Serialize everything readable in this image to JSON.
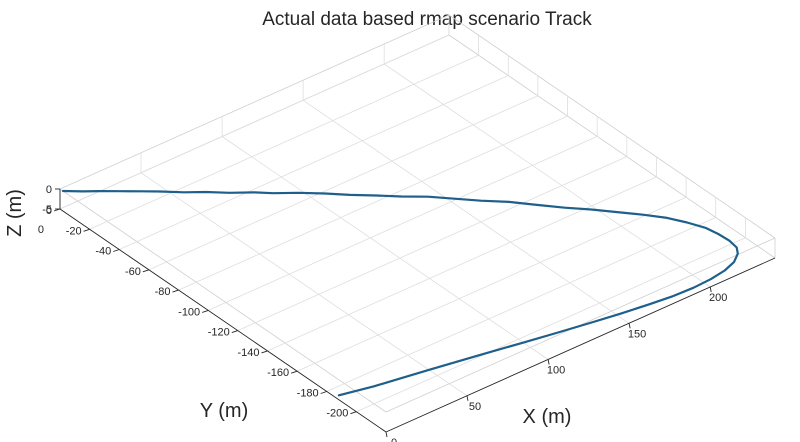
{
  "chart_data": {
    "type": "line",
    "title": "Actual data based rmap scenario Track",
    "xlabel": "X (m)",
    "ylabel": "Y (m)",
    "zlabel": "Z (m)",
    "xlim": [
      0,
      240
    ],
    "ylim": [
      -220,
      0
    ],
    "zlim": [
      -5,
      0
    ],
    "xticks": [
      0,
      50,
      100,
      150,
      200
    ],
    "yticks": [
      -200,
      -180,
      -160,
      -140,
      -120,
      -100,
      -80,
      -60,
      -40,
      -20,
      0
    ],
    "zticks": [
      -5,
      0
    ],
    "grid": true,
    "line_color": "#1f5f8b",
    "series": [
      {
        "x": [
          0,
          8,
          15,
          24,
          33,
          40,
          49,
          58,
          67,
          77,
          84,
          94,
          104,
          113,
          123,
          132,
          142,
          151,
          160,
          170,
          179,
          188,
          197,
          205,
          214,
          221,
          226,
          230,
          231.5,
          232,
          231,
          228,
          222,
          214,
          204,
          193,
          180,
          167,
          152,
          136,
          118,
          98,
          76,
          50,
          20,
          2
        ],
        "y": [
          -2,
          -6.5,
          -10,
          -15,
          -20,
          -24,
          -30,
          -35,
          -41,
          -47,
          -52,
          -58,
          -65,
          -72,
          -79,
          -86,
          -93,
          -101,
          -109,
          -117,
          -126,
          -135,
          -143,
          -151,
          -160,
          -168,
          -176,
          -184,
          -191,
          -198,
          -204,
          -208,
          -212,
          -214.5,
          -216,
          -216.5,
          -216,
          -214.5,
          -212.5,
          -210,
          -207,
          -203.5,
          -199.5,
          -195,
          -190,
          -186
        ],
        "z": [
          0,
          -0.4,
          -0.7,
          -1.1,
          -1.5,
          -1.8,
          -2.1,
          -2.4,
          -2.7,
          -2.9,
          -3.1,
          -3.3,
          -3.5,
          -3.7,
          -3.9,
          -4,
          -4.1,
          -4.2,
          -4.3,
          -4.4,
          -4.5,
          -4.55,
          -4.6,
          -4.65,
          -4.7,
          -4.7,
          -4.75,
          -4.75,
          -4.8,
          -4.8,
          -4.8,
          -4.8,
          -4.8,
          -4.8,
          -4.8,
          -4.8,
          -4.8,
          -4.8,
          -4.8,
          -4.8,
          -4.8,
          -4.8,
          -4.8,
          -4.8,
          -4.8,
          -4.8
        ]
      }
    ]
  }
}
